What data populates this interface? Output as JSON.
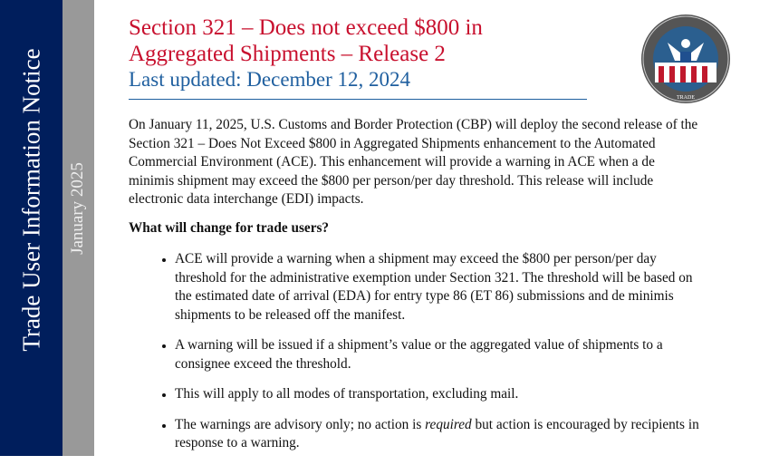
{
  "sidebar": {
    "title": "Trade User Information Notice",
    "date": "January 2025"
  },
  "header": {
    "title_line1": "Section 321 – Does not exceed $800 in",
    "title_line2": "Aggregated Shipments – Release 2",
    "updated": "Last updated: December 12, 2024"
  },
  "logo": {
    "text": "U.S. CUSTOMS AND BORDER PROTECTION",
    "bottom_text": "TRADE"
  },
  "body": {
    "intro": "On January 11, 2025, U.S. Customs and Border Protection (CBP) will deploy the second release of the Section 321 – Does Not Exceed $800 in Aggregated Shipments enhancement to the Automated Commercial Environment (ACE). This enhancement will provide a warning in ACE when a de minimis shipment may exceed the $800 per person/per day threshold. This release will include electronic data interchange (EDI) impacts.",
    "heading": "What will change for trade users?",
    "bullets": [
      "ACE will provide a warning when a shipment may exceed the $800 per person/per day threshold for the administrative exemption under Section 321. The threshold will be based on the estimated date of arrival (EDA) for entry type 86 (ET 86) submissions and de minimis shipments to be released off the manifest.",
      "A warning will be issued if a shipment’s value or the aggregated value of shipments to a consignee exceed the threshold.",
      "This will apply to all modes of transportation, excluding mail."
    ],
    "bullet4_a": "The warnings are advisory only; no action is ",
    "bullet4_em": "required",
    "bullet4_b": " but action is encouraged by recipients in response to a warning."
  },
  "colors": {
    "navy": "#001e5c",
    "gray": "#999999",
    "title_red": "#c8102e",
    "subtitle_blue": "#1f5f9f"
  }
}
